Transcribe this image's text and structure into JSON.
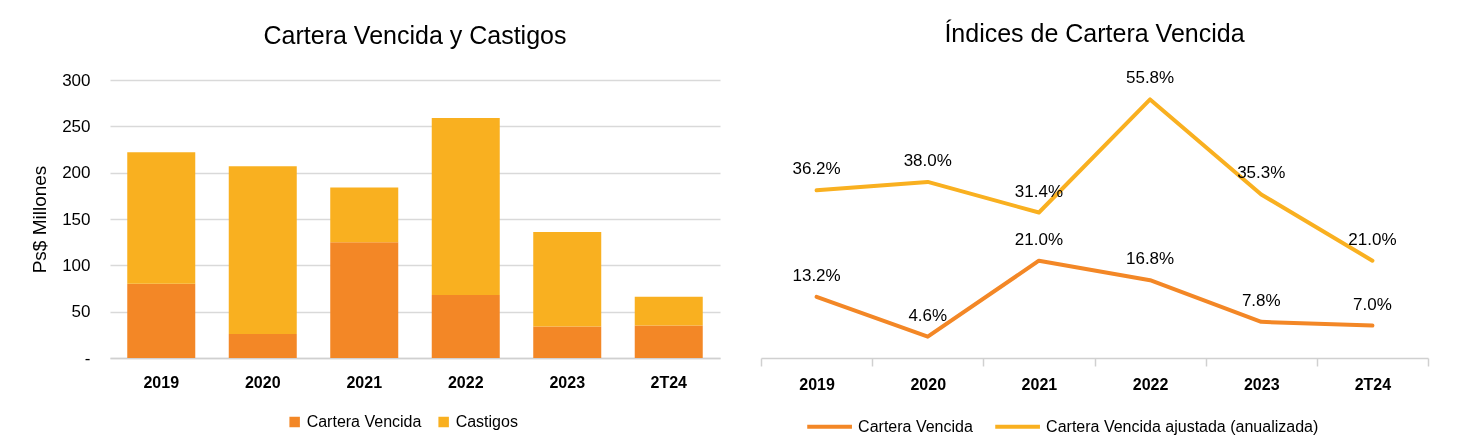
{
  "chart_data": [
    {
      "type": "bar",
      "title": "Cartera Vencida y Castigos",
      "ylabel": "Ps$ Millones",
      "categories": [
        "2019",
        "2020",
        "2021",
        "2022",
        "2023",
        "2T24"
      ],
      "stacked": true,
      "series": [
        {
          "name": "Cartera Vencida",
          "color": "#f38726",
          "values": [
            80,
            26,
            125,
            68,
            34,
            35
          ]
        },
        {
          "name": "Castigos",
          "color": "#f9b020",
          "values": [
            142,
            181,
            59,
            191,
            102,
            31
          ]
        }
      ],
      "ylim": [
        0,
        300
      ],
      "yticks": [
        {
          "value": 0,
          "label": "-"
        },
        50,
        100,
        150,
        200,
        250,
        300
      ],
      "grid": "y",
      "legend": "bottom"
    },
    {
      "type": "line",
      "title": "Índices de Cartera Vencida",
      "categories": [
        "2019",
        "2020",
        "2021",
        "2022",
        "2023",
        "2T24"
      ],
      "series": [
        {
          "name": "Cartera Vencida",
          "color": "#f38726",
          "values": [
            13.2,
            4.6,
            21.0,
            16.8,
            7.8,
            7.0
          ],
          "value_labels": [
            "13.2%",
            "4.6%",
            "21.0%",
            "16.8%",
            "7.8%",
            "7.0%"
          ]
        },
        {
          "name": "Cartera Vencida ajustada (anualizada)",
          "color": "#f9b020",
          "values": [
            36.2,
            38.0,
            31.4,
            55.8,
            35.3,
            21.0
          ],
          "value_labels": [
            "36.2%",
            "38.0%",
            "31.4%",
            "55.8%",
            "35.3%",
            "21.0%"
          ]
        }
      ],
      "tick_labels": "x",
      "line_style": "solid",
      "legend": "bottom"
    }
  ]
}
